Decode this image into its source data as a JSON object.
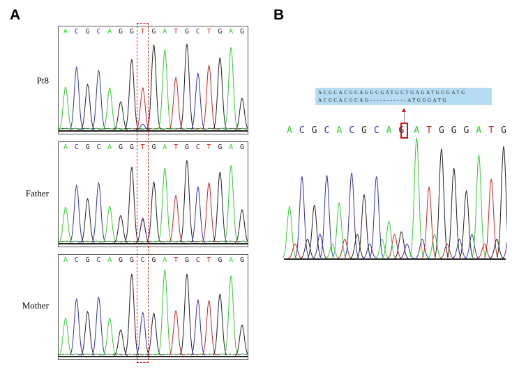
{
  "figure": {
    "panels": [
      {
        "letter": "A"
      },
      {
        "letter": "B"
      }
    ]
  },
  "colors": {
    "A": "#33cc33",
    "C": "#3333aa",
    "G": "#222222",
    "T": "#cc2222",
    "highlight": "#cc2222",
    "alignment_bg": "#b5dcf2"
  },
  "panel_a": {
    "tracks": [
      {
        "label": "Pt8",
        "sequence": [
          "A",
          "C",
          "G",
          "C",
          "A",
          "G",
          "G",
          "T",
          "G",
          "A",
          "T",
          "G",
          "C",
          "T",
          "G",
          "A",
          "G"
        ],
        "peaks": [
          0.5,
          0.73,
          0.53,
          0.69,
          0.49,
          0.33,
          0.82,
          0.49,
          0.99,
          0.93,
          0.61,
          1.0,
          0.66,
          0.75,
          0.84,
          0.96,
          0.37
        ],
        "secondary_peak_at_highlight": {
          "base": "C",
          "height": 0.07
        }
      },
      {
        "label": "Father",
        "sequence": [
          "A",
          "C",
          "G",
          "C",
          "A",
          "G",
          "G",
          "T",
          "G",
          "A",
          "T",
          "G",
          "C",
          "T",
          "G",
          "A",
          "G"
        ],
        "peaks": [
          0.43,
          0.69,
          0.53,
          0.72,
          0.44,
          0.33,
          0.91,
          0.3,
          0.73,
          0.9,
          0.57,
          0.99,
          0.67,
          0.72,
          0.85,
          0.93,
          0.4
        ],
        "secondary_peak_at_highlight": {
          "base": "C",
          "height": 0.28
        }
      },
      {
        "label": "Mother",
        "sequence": [
          "A",
          "C",
          "G",
          "C",
          "A",
          "G",
          "G",
          "C",
          "G",
          "A",
          "T",
          "G",
          "C",
          "T",
          "G",
          "A",
          "G"
        ],
        "peaks": [
          0.45,
          0.68,
          0.53,
          0.7,
          0.45,
          0.31,
          0.98,
          0.52,
          0.51,
          1.03,
          0.54,
          0.98,
          0.67,
          0.66,
          0.74,
          0.96,
          0.37
        ],
        "secondary_peak_at_highlight": null
      }
    ],
    "highlight_index": 7
  },
  "panel_b": {
    "alignment": {
      "reference": "ACGCACGCAGGCGATGCTGAGATGGGATG",
      "mutant": "ACGCACGCAG-----------ATGGGATG"
    },
    "sequence": [
      "A",
      "C",
      "G",
      "C",
      "A",
      "C",
      "G",
      "C",
      "A",
      "G",
      "A",
      "T",
      "G",
      "G",
      "G",
      "A",
      "T",
      "G"
    ],
    "deletion_after_index": 9,
    "peaks": [
      0.43,
      0.68,
      0.44,
      0.69,
      0.46,
      0.71,
      0.53,
      0.68,
      0.31,
      0.22,
      1.0,
      0.59,
      0.91,
      0.75,
      0.56,
      0.86,
      0.66,
      0.93
    ]
  }
}
